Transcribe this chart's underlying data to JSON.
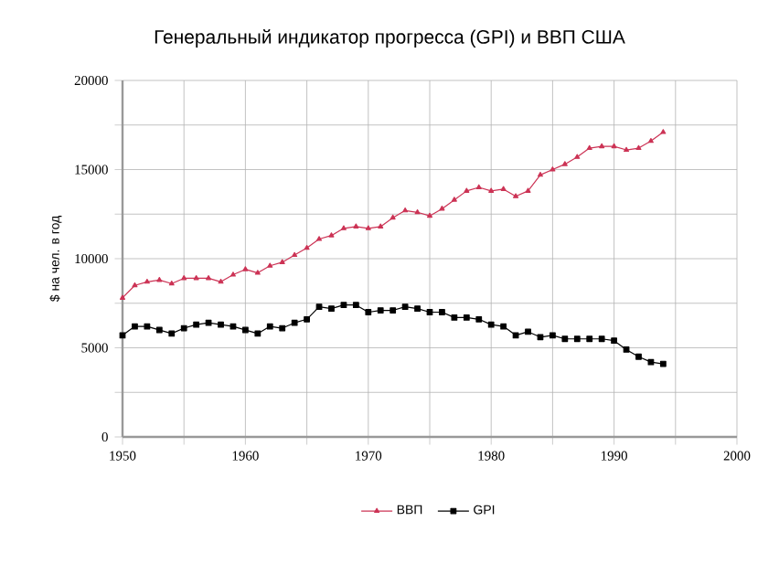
{
  "chart_data": {
    "type": "line",
    "title": "Генеральный индикатор прогресса (GPI) и ВВП США",
    "ylabel": "$ на чел. в год",
    "x": [
      1950,
      1951,
      1952,
      1953,
      1954,
      1955,
      1956,
      1957,
      1958,
      1959,
      1960,
      1961,
      1962,
      1963,
      1964,
      1965,
      1966,
      1967,
      1968,
      1969,
      1970,
      1971,
      1972,
      1973,
      1974,
      1975,
      1976,
      1977,
      1978,
      1979,
      1980,
      1981,
      1982,
      1983,
      1984,
      1985,
      1986,
      1987,
      1988,
      1989,
      1990,
      1991,
      1992,
      1993,
      1994
    ],
    "series": [
      {
        "name": "ВВП",
        "color": "#cc3355",
        "marker": "triangle",
        "values": [
          7800,
          8500,
          8700,
          8800,
          8600,
          8900,
          8900,
          8900,
          8700,
          9100,
          9400,
          9200,
          9600,
          9800,
          10200,
          10600,
          11100,
          11300,
          11700,
          11800,
          11700,
          11800,
          12300,
          12700,
          12600,
          12400,
          12800,
          13300,
          13800,
          14000,
          13800,
          13900,
          13500,
          13800,
          14700,
          15000,
          15300,
          15700,
          16200,
          16300,
          16300,
          16100,
          16200,
          16600,
          17100
        ]
      },
      {
        "name": "GPI",
        "color": "#000000",
        "marker": "square",
        "values": [
          5700,
          6200,
          6200,
          6000,
          5800,
          6100,
          6300,
          6400,
          6300,
          6200,
          6000,
          5800,
          6200,
          6100,
          6400,
          6600,
          7300,
          7200,
          7400,
          7400,
          7000,
          7100,
          7100,
          7300,
          7200,
          7000,
          7000,
          6700,
          6700,
          6600,
          6300,
          6200,
          5700,
          5900,
          5600,
          5700,
          5500,
          5500,
          5500,
          5500,
          5400,
          4900,
          4500,
          4200,
          4100
        ]
      }
    ],
    "xlim": [
      1950,
      2000
    ],
    "xticks": [
      1950,
      {
        "value": 1955,
        "label": null
      },
      1960,
      {
        "value": 1965,
        "label": null
      },
      1970,
      {
        "value": 1975,
        "label": null
      },
      1980,
      {
        "value": 1985,
        "label": null
      },
      1990,
      {
        "value": 1995,
        "label": null
      },
      2000
    ],
    "ylim": [
      0,
      20000
    ],
    "yticks": [
      0,
      {
        "value": 2500,
        "label": null
      },
      5000,
      {
        "value": 7500,
        "label": null
      },
      10000,
      {
        "value": 12500,
        "label": null
      },
      15000,
      {
        "value": 17500,
        "label": null
      },
      20000
    ],
    "grid": true,
    "legend": "bottom",
    "line_style": "solid"
  }
}
